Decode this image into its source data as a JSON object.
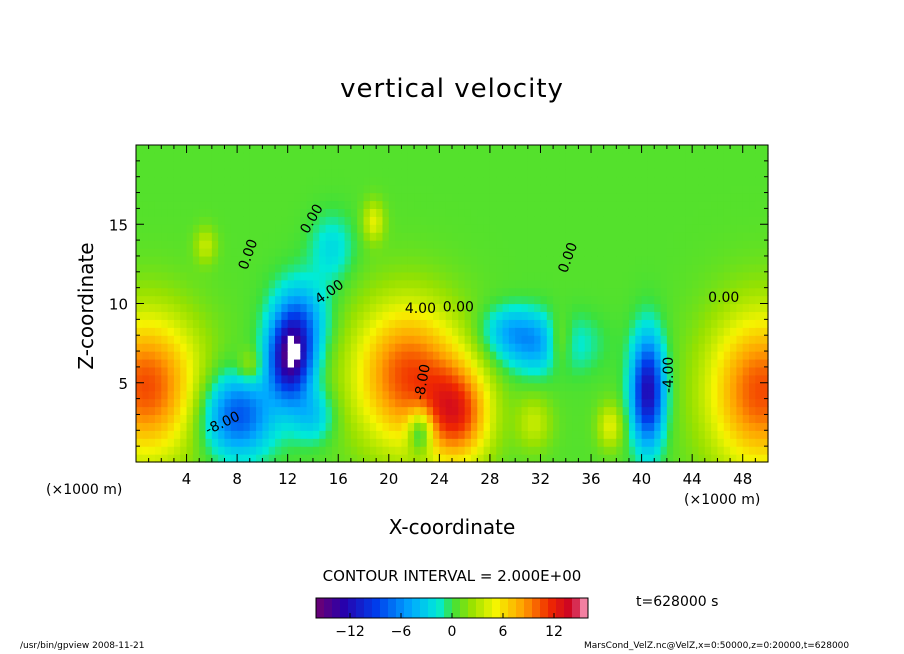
{
  "chart_data": {
    "type": "heatmap",
    "title": "vertical velocity",
    "xlabel": "X-coordinate",
    "ylabel": "Z-coordinate",
    "x_unit": "(×1000 m)",
    "xlim": [
      0,
      50
    ],
    "ylim": [
      0,
      20
    ],
    "x_ticks": [
      4,
      8,
      12,
      16,
      20,
      24,
      28,
      32,
      36,
      40,
      44,
      48
    ],
    "y_ticks": [
      5,
      10,
      15
    ],
    "contour_interval_text": "CONTOUR INTERVAL = 2.000E+00",
    "contour_labels": [
      {
        "text": "0.00",
        "x": 14.2,
        "z": 15.2,
        "rot": -60
      },
      {
        "text": "0.00",
        "x": 9.2,
        "z": 13.0,
        "rot": -70
      },
      {
        "text": "4.00",
        "x": 15.5,
        "z": 10.5,
        "rot": -35
      },
      {
        "text": "4.00",
        "x": 22.5,
        "z": 9.4,
        "rot": 0
      },
      {
        "text": "0.00",
        "x": 25.5,
        "z": 9.5,
        "rot": 0
      },
      {
        "text": "0.00",
        "x": 34.5,
        "z": 12.8,
        "rot": -70
      },
      {
        "text": "0.00",
        "x": 46.5,
        "z": 10.1,
        "rot": 0
      },
      {
        "text": "-4.00",
        "x": 42.5,
        "z": 5.5,
        "rot": -90
      },
      {
        "text": "-8.00",
        "x": 7.0,
        "z": 2.2,
        "rot": -25
      },
      {
        "text": "-8.00",
        "x": 23.0,
        "z": 5.0,
        "rot": -80
      }
    ],
    "features": [
      {
        "x": 0.8,
        "z": 4.8,
        "w": 10,
        "sx": 3.0,
        "sz": 3.2
      },
      {
        "x": 21.5,
        "z": 5.5,
        "w": 10,
        "sx": 3.0,
        "sz": 3.2
      },
      {
        "x": 25.5,
        "z": 3.0,
        "w": 9,
        "sx": 1.8,
        "sz": 2.2
      },
      {
        "x": 49.5,
        "z": 4.5,
        "w": 10,
        "sx": 3.0,
        "sz": 3.5
      },
      {
        "x": 33.5,
        "z": 7.6,
        "w": 5,
        "sx": 0.8,
        "sz": 1.2
      },
      {
        "x": 18.8,
        "z": 15.2,
        "w": 4,
        "sx": 0.6,
        "sz": 0.9
      },
      {
        "x": 5.5,
        "z": 13.7,
        "w": 3,
        "sx": 0.6,
        "sz": 0.8
      },
      {
        "x": 9.0,
        "z": 6.0,
        "w": 3,
        "sx": 0.7,
        "sz": 0.8
      },
      {
        "x": 37.5,
        "z": 2.3,
        "w": 4,
        "sx": 0.7,
        "sz": 1.0
      },
      {
        "x": 31.5,
        "z": 2.5,
        "w": 3,
        "sx": 1.0,
        "sz": 1.2
      },
      {
        "x": 12.2,
        "z": 6.5,
        "w": -14,
        "sx": 1.2,
        "sz": 1.8
      },
      {
        "x": 8.0,
        "z": 3.0,
        "w": -9,
        "sx": 2.0,
        "sz": 1.8
      },
      {
        "x": 13.0,
        "z": 9.0,
        "w": -6,
        "sx": 1.5,
        "sz": 1.8
      },
      {
        "x": 40.5,
        "z": 4.5,
        "w": -13,
        "sx": 0.9,
        "sz": 2.4
      },
      {
        "x": 32.0,
        "z": 7.5,
        "w": -6,
        "sx": 2.5,
        "sz": 1.3
      },
      {
        "x": 29.5,
        "z": 8.5,
        "w": -3,
        "sx": 1.5,
        "sz": 1.0
      },
      {
        "x": 15.5,
        "z": 13.5,
        "w": -3,
        "sx": 1.2,
        "sz": 1.5
      },
      {
        "x": 22.5,
        "z": 2.0,
        "w": -7,
        "sx": 0.7,
        "sz": 1.0
      },
      {
        "x": 14.0,
        "z": 3.0,
        "w": -4,
        "sx": 1.2,
        "sz": 1.2
      }
    ],
    "colorbar": {
      "range": [
        -16,
        16
      ],
      "ticks": [
        -12,
        -6,
        0,
        6,
        12
      ]
    },
    "time_text": "t=628000 s",
    "footer_left": "/usr/bin/gpview   2008-11-21",
    "footer_right": "MarsCond_VelZ.nc@VelZ,x=0:50000,z=0:20000,t=628000"
  }
}
